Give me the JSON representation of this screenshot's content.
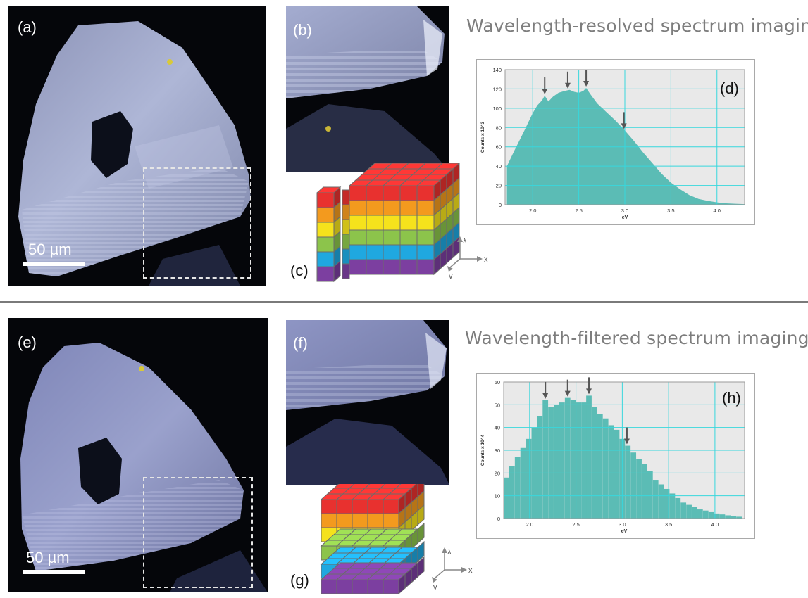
{
  "top": {
    "heading": "Wavelength-resolved spectrum imaging",
    "labels": {
      "a": "(a)",
      "b": "(b)",
      "c": "(c)",
      "d": "(d)"
    },
    "scale_label": "50 µm",
    "axes": {
      "lambda": "λ",
      "x": "x",
      "y": "y"
    }
  },
  "bottom": {
    "heading": "Wavelength-filtered spectrum imaging",
    "labels": {
      "e": "(e)",
      "f": "(f)",
      "g": "(g)",
      "h": "(h)"
    },
    "scale_label": "50 µm",
    "axes": {
      "lambda": "λ",
      "x": "x",
      "y": "y"
    }
  },
  "colors": {
    "hist_fill": "#5bbcb5",
    "plot_bg": "#e9e9e9",
    "grid": "#37d7dd",
    "cube": [
      "#e8312f",
      "#f39a1e",
      "#f5e21c",
      "#8cc44b",
      "#1fa8e0",
      "#7c3fa0"
    ]
  },
  "chart_data": [
    {
      "type": "area",
      "panel": "(d)",
      "xlabel": "eV",
      "ylabel": "Counts x 10^3",
      "xlim": [
        1.7,
        4.3
      ],
      "ylim": [
        0,
        140
      ],
      "yticks": [
        0,
        20,
        40,
        60,
        80,
        100,
        120,
        140
      ],
      "xticks": [
        "2.0",
        "2.5",
        "3.0",
        "3.5",
        "4.0"
      ],
      "xtick_values": [
        2.0,
        2.5,
        3.0,
        3.5,
        4.0
      ],
      "ytick_labels": [
        "0",
        "20",
        "40",
        "60",
        "80",
        "100",
        "120",
        "140"
      ],
      "x": [
        1.72,
        1.8,
        1.9,
        2.0,
        2.05,
        2.1,
        2.13,
        2.17,
        2.22,
        2.28,
        2.35,
        2.4,
        2.45,
        2.5,
        2.55,
        2.58,
        2.63,
        2.7,
        2.8,
        2.9,
        3.0,
        3.1,
        3.2,
        3.3,
        3.4,
        3.5,
        3.6,
        3.7,
        3.8,
        3.9,
        4.0,
        4.1,
        4.2,
        4.3
      ],
      "y": [
        40,
        56,
        75,
        95,
        103,
        108,
        113,
        107,
        112,
        116,
        118,
        119,
        117,
        116,
        118,
        121,
        114,
        105,
        96,
        87,
        77,
        66,
        54,
        43,
        32,
        23,
        16,
        10,
        6,
        4,
        2.5,
        1.5,
        1,
        0.6
      ],
      "arrows_at": [
        2.13,
        2.38,
        2.58,
        2.99
      ]
    },
    {
      "type": "bar",
      "panel": "(h)",
      "xlabel": "eV",
      "ylabel": "Counts x 10^4",
      "xlim": [
        1.72,
        4.32
      ],
      "ylim": [
        0,
        60
      ],
      "yticks": [
        0,
        10,
        20,
        30,
        40,
        50,
        60
      ],
      "xticks": [
        "2.0",
        "2.5",
        "3.0",
        "3.5",
        "4.0"
      ],
      "xtick_values": [
        2.0,
        2.5,
        3.0,
        3.5,
        4.0
      ],
      "ytick_labels": [
        "0",
        "10",
        "20",
        "30",
        "40",
        "50",
        "60"
      ],
      "bin_width": 0.059,
      "x": [
        1.75,
        1.81,
        1.87,
        1.93,
        1.99,
        2.05,
        2.11,
        2.17,
        2.23,
        2.29,
        2.35,
        2.41,
        2.47,
        2.53,
        2.59,
        2.64,
        2.7,
        2.76,
        2.82,
        2.88,
        2.94,
        3.0,
        3.06,
        3.12,
        3.18,
        3.24,
        3.3,
        3.36,
        3.42,
        3.48,
        3.54,
        3.6,
        3.66,
        3.72,
        3.78,
        3.84,
        3.9,
        3.96,
        4.02,
        4.08,
        4.14,
        4.2,
        4.26
      ],
      "y": [
        18,
        23,
        27,
        31,
        35,
        40,
        45,
        52,
        49,
        50,
        51,
        53,
        52,
        51,
        51,
        54,
        49,
        46,
        44,
        41,
        39,
        35,
        32,
        29,
        26,
        24,
        21,
        17,
        15,
        13,
        11,
        9,
        7,
        6,
        5,
        4,
        3.5,
        2.8,
        2.2,
        1.8,
        1.4,
        1.1,
        0.8
      ],
      "arrows_at": [
        2.17,
        2.41,
        2.64,
        3.05
      ]
    }
  ]
}
